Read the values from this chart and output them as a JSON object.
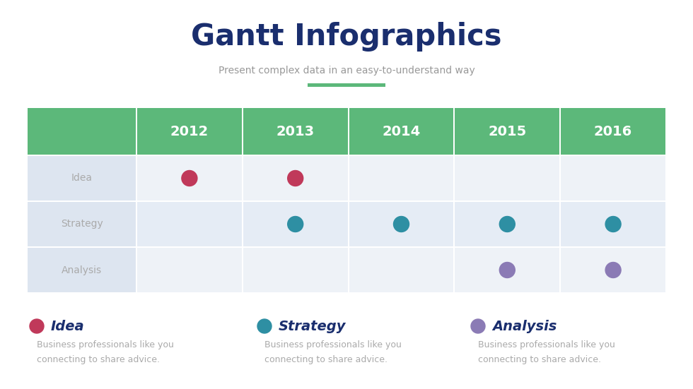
{
  "title": "Gantt Infographics",
  "subtitle": "Present complex data in an easy-to-understand way",
  "title_color": "#1a2e6e",
  "subtitle_color": "#999999",
  "accent_line_color": "#5cb87a",
  "bg_color": "#ffffff",
  "years": [
    "2012",
    "2013",
    "2014",
    "2015",
    "2016"
  ],
  "rows": [
    "Idea",
    "Strategy",
    "Analysis"
  ],
  "header_color": "#5cb87a",
  "header_text_color": "#ffffff",
  "row_label_color": "#aaaaaa",
  "cell_bg_even": "#eef2f7",
  "cell_bg_odd": "#e5ecf5",
  "label_col_bg": "#dde5f0",
  "dot_colors": {
    "Idea": "#c0395a",
    "Strategy": "#2e8fa3",
    "Analysis": "#8b7bb5"
  },
  "dots": {
    "Idea": [
      0,
      1
    ],
    "Strategy": [
      1,
      2,
      3,
      4
    ],
    "Analysis": [
      3,
      4
    ]
  },
  "legend": [
    {
      "label": "Idea",
      "color": "#c0395a"
    },
    {
      "label": "Strategy",
      "color": "#2e8fa3"
    },
    {
      "label": "Analysis",
      "color": "#8b7bb5"
    }
  ],
  "legend_title_color": "#1a2e6e",
  "legend_desc_color": "#aaaaaa",
  "legend_desc": "Business professionals like you\nconnecting to share advice."
}
